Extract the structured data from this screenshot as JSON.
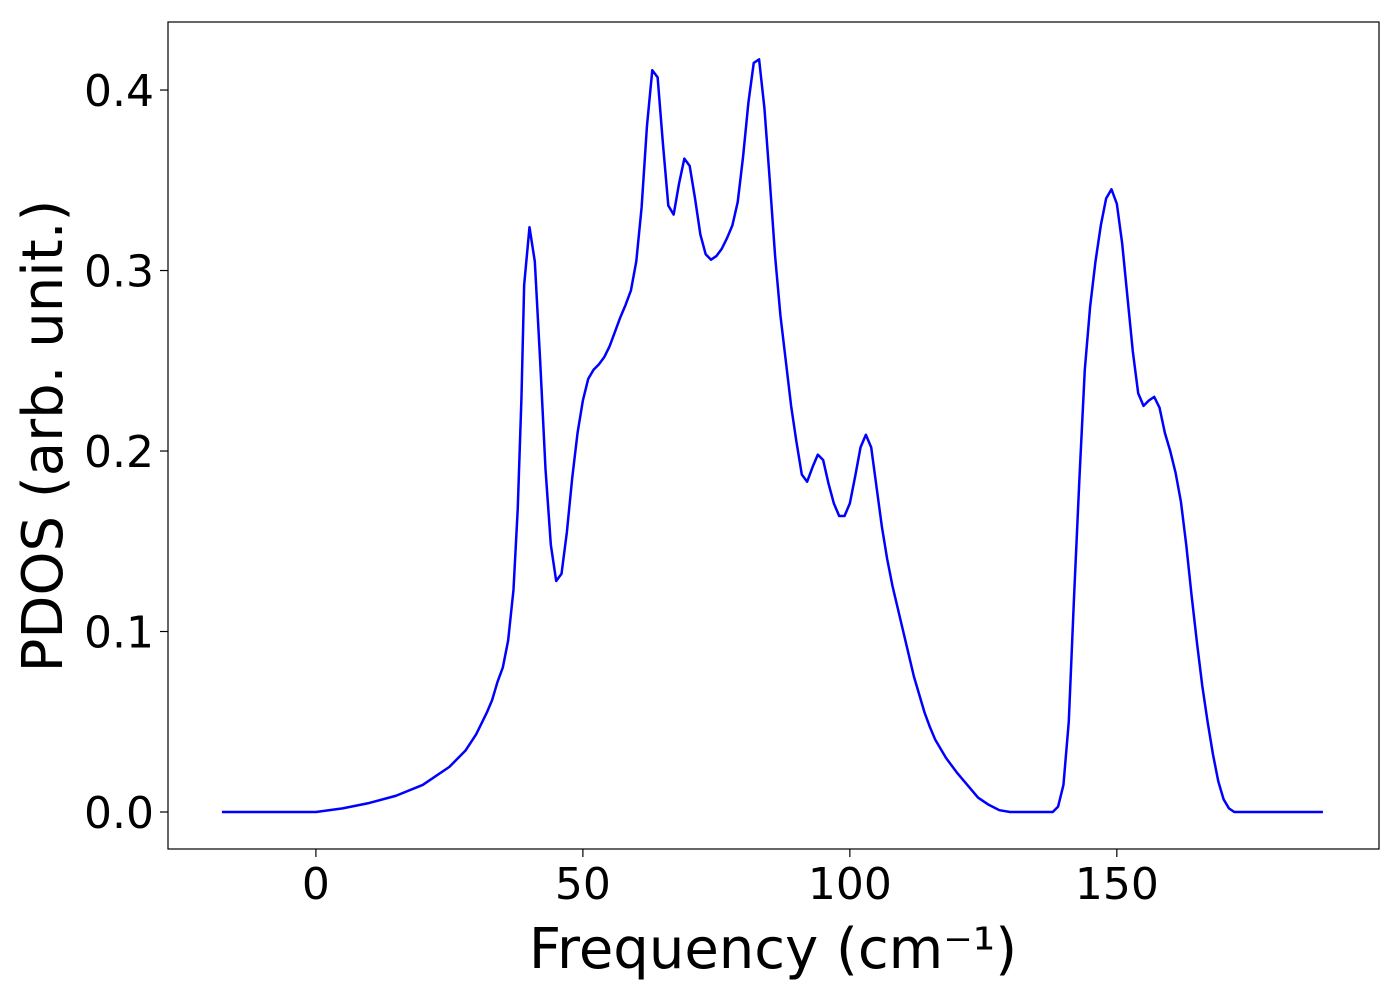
{
  "chart_data": {
    "type": "line",
    "xlabel": "Frequency (cm⁻¹)",
    "ylabel": "PDOS (arb. unit.)",
    "xlim": [
      -27.7,
      199.1
    ],
    "ylim": [
      -0.0205,
      0.4377
    ],
    "xticks": [
      0,
      50,
      100,
      150
    ],
    "yticks": [
      {
        "value": 0,
        "label": "0.0"
      },
      {
        "value": 0.1,
        "label": "0.1"
      },
      {
        "value": 0.2,
        "label": "0.2"
      },
      {
        "value": 0.3,
        "label": "0.3"
      },
      {
        "value": 0.4,
        "label": "0.4"
      }
    ],
    "x": [
      -17.6,
      0,
      5,
      10,
      15,
      20,
      25,
      28,
      30,
      32,
      33,
      34,
      35,
      36,
      37,
      37.8,
      38.5,
      39,
      40,
      41,
      42,
      43,
      44,
      45,
      46,
      47,
      48,
      49,
      50,
      51,
      52,
      53,
      54,
      55,
      56,
      57,
      58,
      59,
      60,
      61,
      62,
      63,
      64,
      65,
      66,
      67,
      68,
      69,
      70,
      71,
      72,
      73,
      74,
      75,
      76,
      77,
      78,
      79,
      80,
      81,
      82,
      83,
      84,
      85,
      86,
      87,
      88,
      89,
      90,
      91,
      92,
      93,
      94,
      95,
      96,
      97,
      98,
      99,
      100,
      101,
      102,
      103,
      104,
      105,
      106,
      107,
      108,
      110,
      112,
      114,
      115,
      116,
      118,
      120,
      122,
      124,
      126,
      128,
      130,
      138,
      139,
      140,
      141,
      142,
      143,
      144,
      145,
      146,
      147,
      148,
      149,
      150,
      151,
      152,
      153,
      154,
      155,
      156,
      157,
      158,
      159,
      160,
      161,
      162,
      163,
      164,
      165,
      166,
      167,
      168,
      169,
      170,
      171,
      172,
      188.6
    ],
    "series": [
      {
        "name": "PDOS",
        "color": "#0000ff",
        "values": [
          0,
          0,
          0.002,
          0.005,
          0.009,
          0.015,
          0.025,
          0.034,
          0.043,
          0.055,
          0.062,
          0.072,
          0.08,
          0.095,
          0.123,
          0.168,
          0.23,
          0.292,
          0.324,
          0.305,
          0.25,
          0.19,
          0.148,
          0.128,
          0.132,
          0.155,
          0.185,
          0.21,
          0.228,
          0.24,
          0.245,
          0.248,
          0.252,
          0.258,
          0.266,
          0.274,
          0.281,
          0.289,
          0.305,
          0.335,
          0.38,
          0.411,
          0.407,
          0.37,
          0.336,
          0.331,
          0.348,
          0.362,
          0.358,
          0.34,
          0.32,
          0.309,
          0.306,
          0.308,
          0.312,
          0.318,
          0.325,
          0.338,
          0.363,
          0.393,
          0.415,
          0.417,
          0.39,
          0.35,
          0.308,
          0.275,
          0.25,
          0.225,
          0.205,
          0.187,
          0.183,
          0.191,
          0.198,
          0.195,
          0.182,
          0.171,
          0.164,
          0.164,
          0.171,
          0.186,
          0.202,
          0.209,
          0.202,
          0.18,
          0.158,
          0.14,
          0.125,
          0.1,
          0.075,
          0.055,
          0.047,
          0.04,
          0.03,
          0.022,
          0.015,
          0.008,
          0.004,
          0.001,
          0,
          0,
          0.003,
          0.015,
          0.05,
          0.12,
          0.185,
          0.245,
          0.28,
          0.305,
          0.325,
          0.34,
          0.345,
          0.337,
          0.315,
          0.285,
          0.255,
          0.232,
          0.225,
          0.228,
          0.23,
          0.224,
          0.21,
          0.2,
          0.188,
          0.172,
          0.148,
          0.12,
          0.094,
          0.07,
          0.05,
          0.032,
          0.017,
          0.007,
          0.002,
          0,
          0
        ]
      }
    ]
  }
}
